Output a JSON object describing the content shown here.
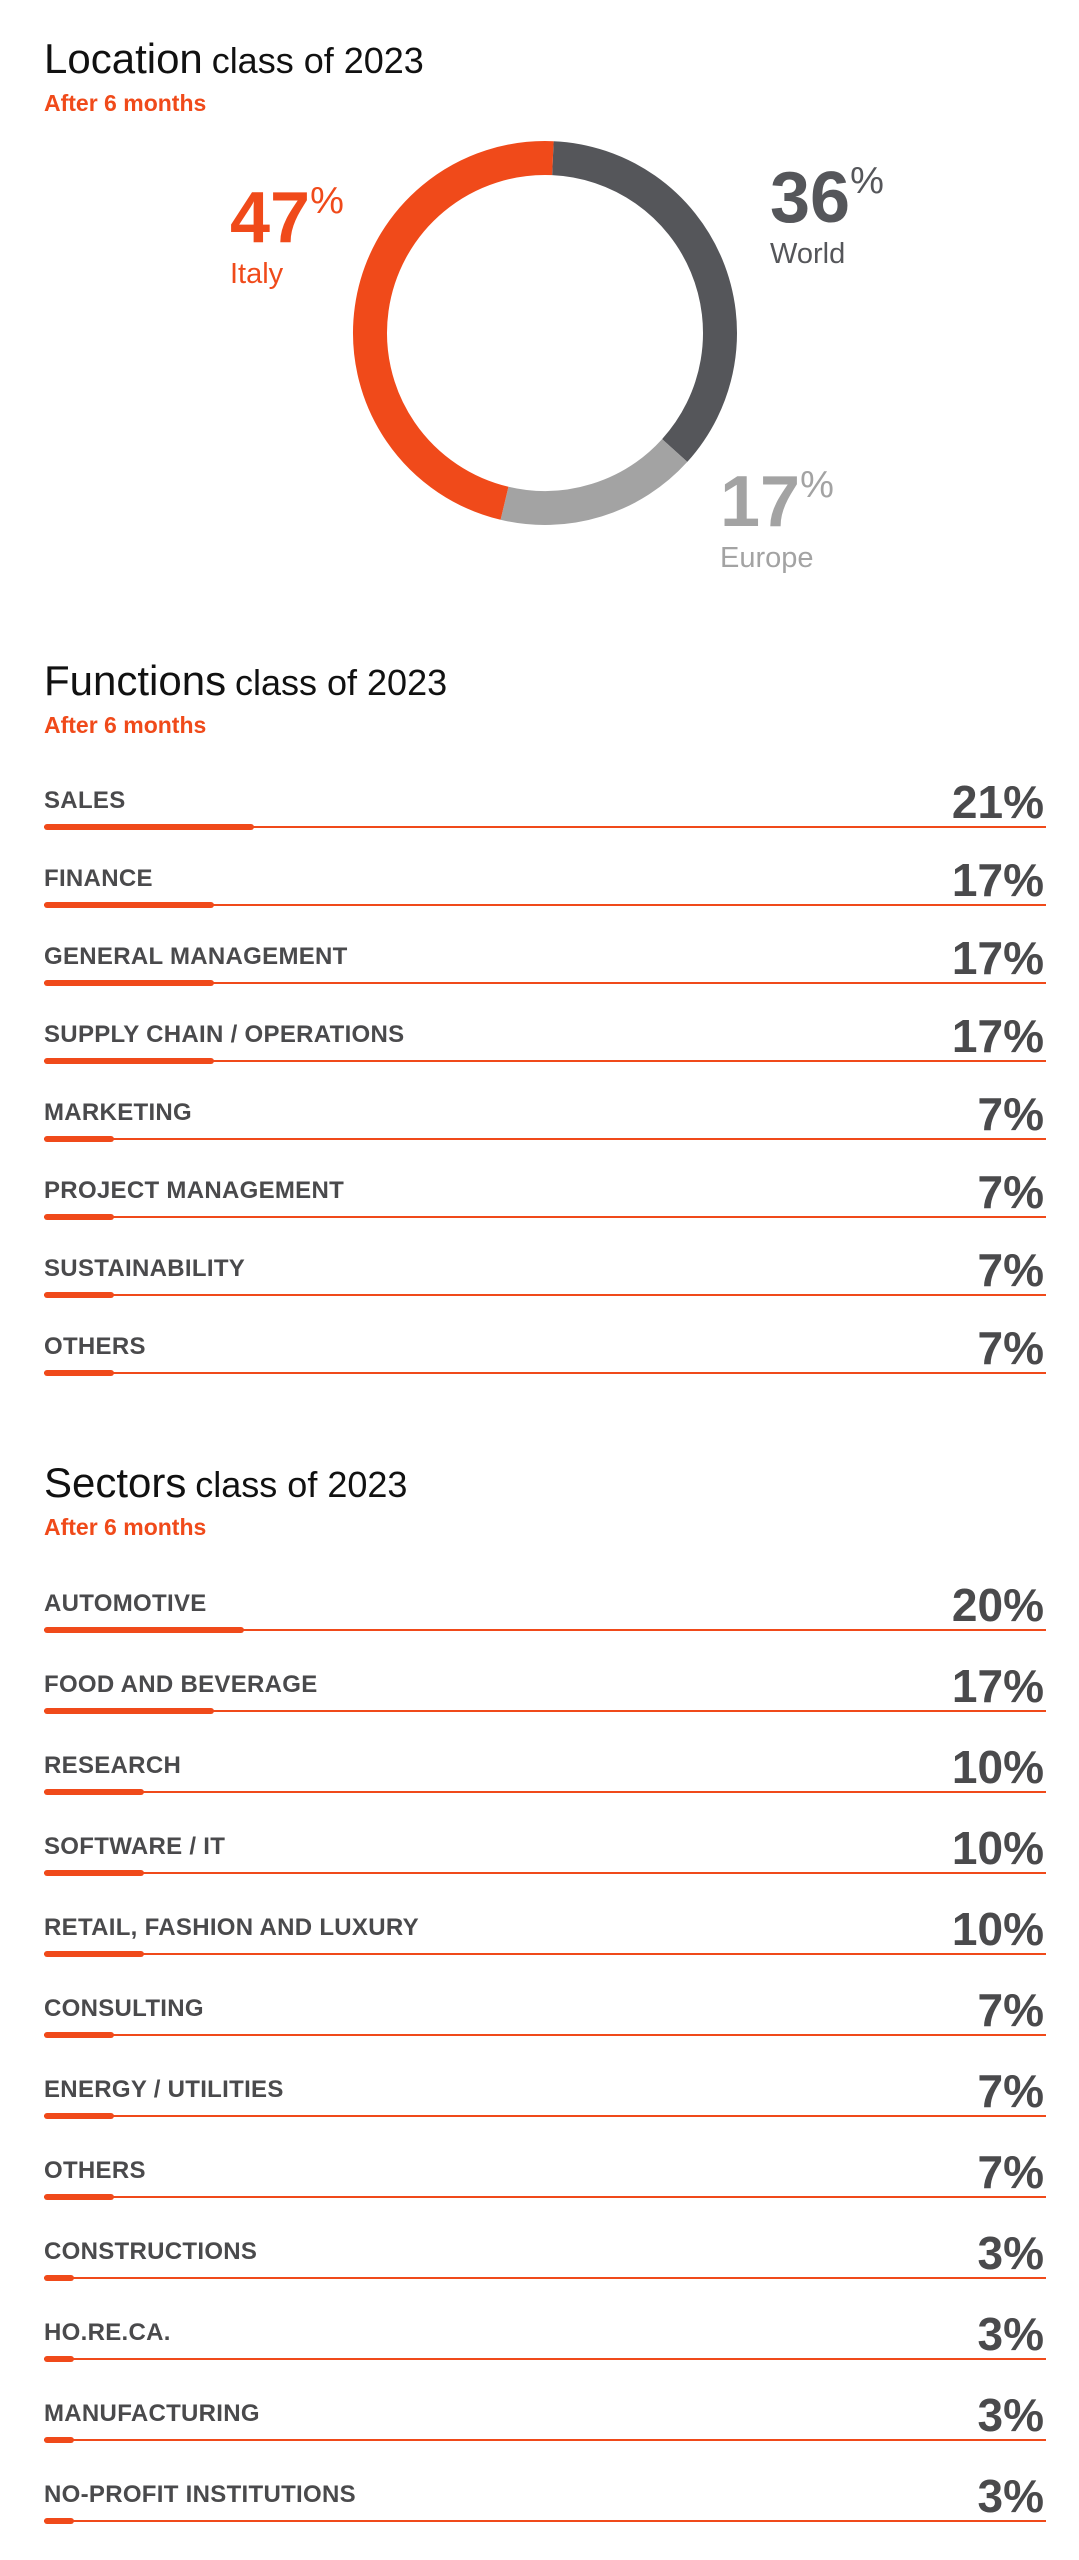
{
  "colors": {
    "accent": "#f04a1a",
    "dark": "#55565a",
    "light": "#a3a3a3",
    "text": "#4a4a4c"
  },
  "location": {
    "title": "Location",
    "subtitle": "class of 2023",
    "note": "After 6 months"
  },
  "functions": {
    "title": "Functions",
    "subtitle": "class of 2023",
    "note": "After 6 months"
  },
  "sectors": {
    "title": "Sectors",
    "subtitle": "class of 2023",
    "note": "After 6 months"
  },
  "chart_data": [
    {
      "type": "pie",
      "variant": "donut",
      "title": "Location",
      "subtitle": "class of 2023",
      "note": "After 6 months",
      "labels": [
        "World",
        "Europe",
        "Italy"
      ],
      "values": [
        36,
        17,
        47
      ],
      "value_labels": [
        "36",
        "17",
        "47"
      ],
      "unit": "%",
      "colors": [
        "#55565a",
        "#a3a3a3",
        "#f04a1a"
      ]
    },
    {
      "type": "bar",
      "orientation": "horizontal",
      "title": "Functions",
      "subtitle": "class of 2023",
      "note": "After 6 months",
      "categories": [
        "SALES",
        "FINANCE",
        "GENERAL MANAGEMENT",
        "SUPPLY CHAIN / OPERATIONS",
        "MARKETING",
        "PROJECT MANAGEMENT",
        "SUSTAINABILITY",
        "OTHERS"
      ],
      "values": [
        21,
        17,
        17,
        17,
        7,
        7,
        7,
        7
      ],
      "value_labels": [
        "21%",
        "17%",
        "17%",
        "17%",
        "7%",
        "7%",
        "7%",
        "7%"
      ],
      "xlim": [
        0,
        100
      ]
    },
    {
      "type": "bar",
      "orientation": "horizontal",
      "title": "Sectors",
      "subtitle": "class of 2023",
      "note": "After 6 months",
      "categories": [
        "AUTOMOTIVE",
        "FOOD AND BEVERAGE",
        "RESEARCH",
        "SOFTWARE / IT",
        "RETAIL, FASHION AND LUXURY",
        "CONSULTING",
        "ENERGY / UTILITIES",
        "OTHERS",
        "CONSTRUCTIONS",
        "HO.RE.CA.",
        "MANUFACTURING",
        "NO-PROFIT INSTITUTIONS"
      ],
      "values": [
        20,
        17,
        10,
        10,
        10,
        7,
        7,
        7,
        3,
        3,
        3,
        3
      ],
      "value_labels": [
        "20%",
        "17%",
        "10%",
        "10%",
        "10%",
        "7%",
        "7%",
        "7%",
        "3%",
        "3%",
        "3%",
        "3%"
      ],
      "xlim": [
        0,
        100
      ]
    }
  ]
}
